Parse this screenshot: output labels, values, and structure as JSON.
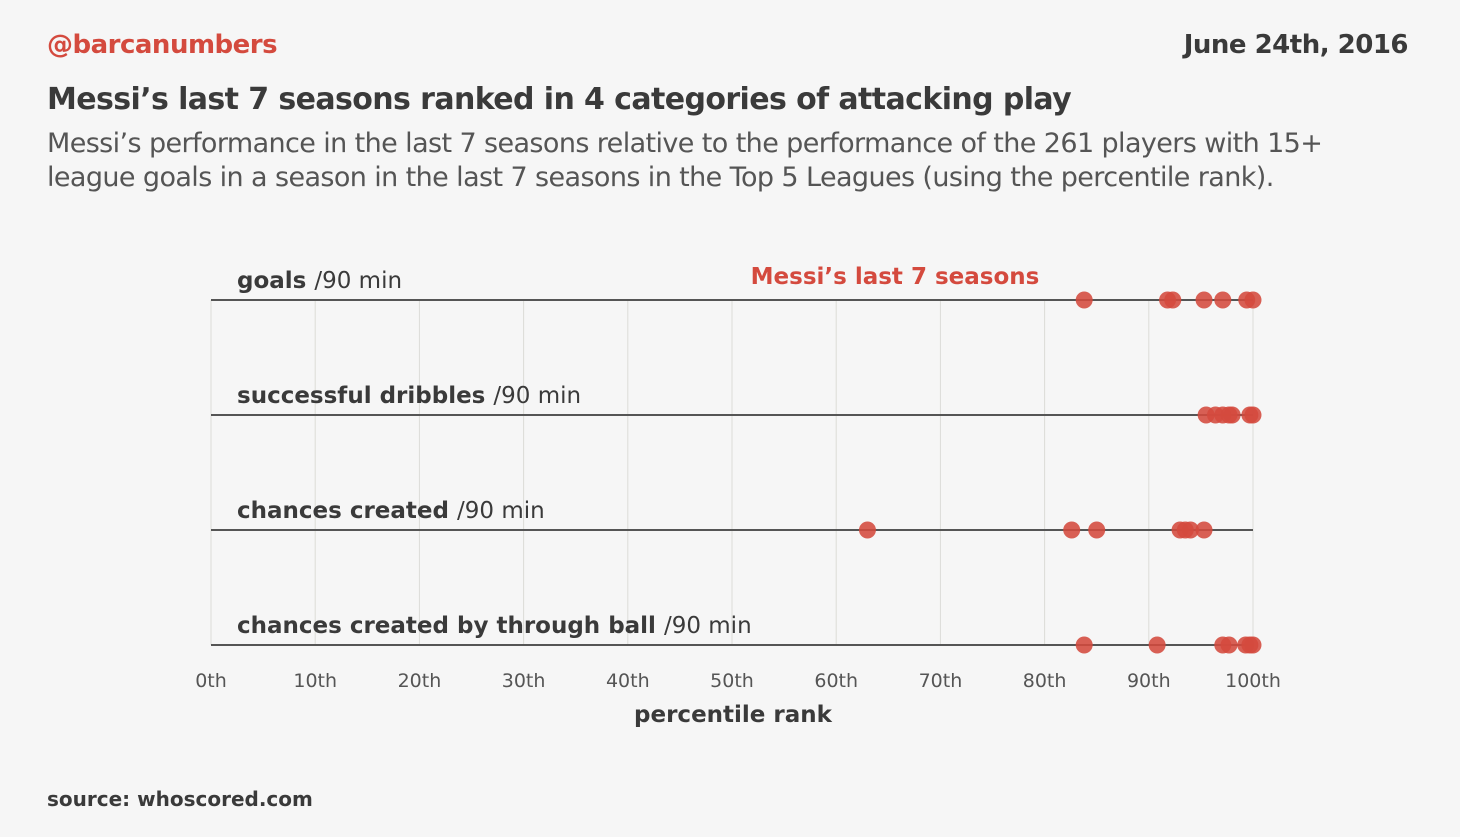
{
  "header": {
    "handle": "@barcanumbers",
    "date": "June 24th, 2016",
    "title": "Messi’s last 7 seasons ranked in 4 categories of attacking play",
    "subtitle": "Messi’s performance in the last 7 seasons relative to the performance of the 261 players with 15+ league goals in a season in the last 7 seasons in the Top 5 Leagues (using the percentile rank)."
  },
  "footer": {
    "source": "source: whoscored.com"
  },
  "colors": {
    "accent": "#d44a3e",
    "text": "#3a3a3a",
    "axis_line": "#555555",
    "grid": "#dcdcd8"
  },
  "chart_data": {
    "type": "scatter",
    "xlabel": "percentile rank",
    "xlim": [
      0,
      100
    ],
    "x_ticks": [
      0,
      10,
      20,
      30,
      40,
      50,
      60,
      70,
      80,
      90,
      100
    ],
    "x_tick_labels": [
      "0th",
      "10th",
      "20th",
      "30th",
      "40th",
      "50th",
      "60th",
      "70th",
      "80th",
      "90th",
      "100th"
    ],
    "grid": true,
    "series_label": "Messi’s last 7 seasons",
    "categories": [
      {
        "name": "goals",
        "unit": "/90 min",
        "values": [
          83.8,
          91.8,
          92.3,
          95.3,
          97.1,
          99.4,
          100
        ]
      },
      {
        "name": "successful dribbles",
        "unit": "/90 min",
        "values": [
          95.5,
          96.4,
          97.1,
          97.7,
          98.0,
          99.7,
          100
        ]
      },
      {
        "name": "chances created",
        "unit": "/90 min",
        "values": [
          63.0,
          82.6,
          85.0,
          93.0,
          93.5,
          94.0,
          95.3
        ]
      },
      {
        "name": "chances created by through ball",
        "unit": "/90 min",
        "values": [
          83.8,
          90.8,
          97.1,
          97.7,
          99.3,
          99.7,
          100
        ]
      }
    ]
  }
}
